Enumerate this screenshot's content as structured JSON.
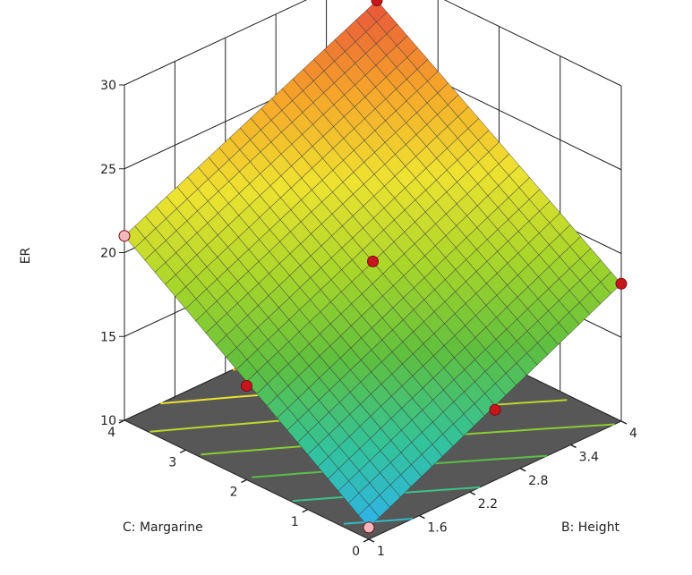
{
  "chart_data": {
    "type": "surface3d",
    "title": "",
    "zlabel": "ER",
    "xlabel": "B: Height",
    "ylabel": "C: Margarine",
    "z_ticks": [
      "10",
      "15",
      "20",
      "25",
      "30"
    ],
    "x_ticks": [
      "1",
      "1.6",
      "2.2",
      "2.8",
      "3.4",
      "4"
    ],
    "y_ticks": [
      "0",
      "1",
      "2",
      "3",
      "4"
    ],
    "xlim": [
      1,
      4
    ],
    "ylim": [
      0,
      4
    ],
    "zlim": [
      10,
      30
    ],
    "surface_corners": {
      "B1_C0": 10.7,
      "B4_C0": 18.2,
      "B1_C4": 21.0,
      "B4_C4": 28.0
    },
    "design_points": [
      {
        "B": 1,
        "C": 0,
        "ER": 10.7,
        "below_surface": true
      },
      {
        "B": 4,
        "C": 0,
        "ER": 18.2,
        "below_surface": false
      },
      {
        "B": 1,
        "C": 4,
        "ER": 21.0,
        "below_surface": true
      },
      {
        "B": 4,
        "C": 4,
        "ER": 28.0,
        "below_surface": false
      },
      {
        "B": 2.5,
        "C": 2,
        "ER": 19.5,
        "below_surface": false
      },
      {
        "B": 2.5,
        "C": 0,
        "ER": 14.2,
        "below_surface": false
      },
      {
        "B": 1,
        "C": 2,
        "ER": 15.6,
        "below_surface": false
      }
    ],
    "contour_levels": [
      12,
      14,
      16,
      18,
      20,
      22,
      24,
      26
    ],
    "grid": true,
    "colormap": [
      "#2fb2ee",
      "#33c39a",
      "#5fbf3e",
      "#a9d62a",
      "#eee330",
      "#f6a52a",
      "#e8533a"
    ],
    "floor_color": "#575757"
  }
}
